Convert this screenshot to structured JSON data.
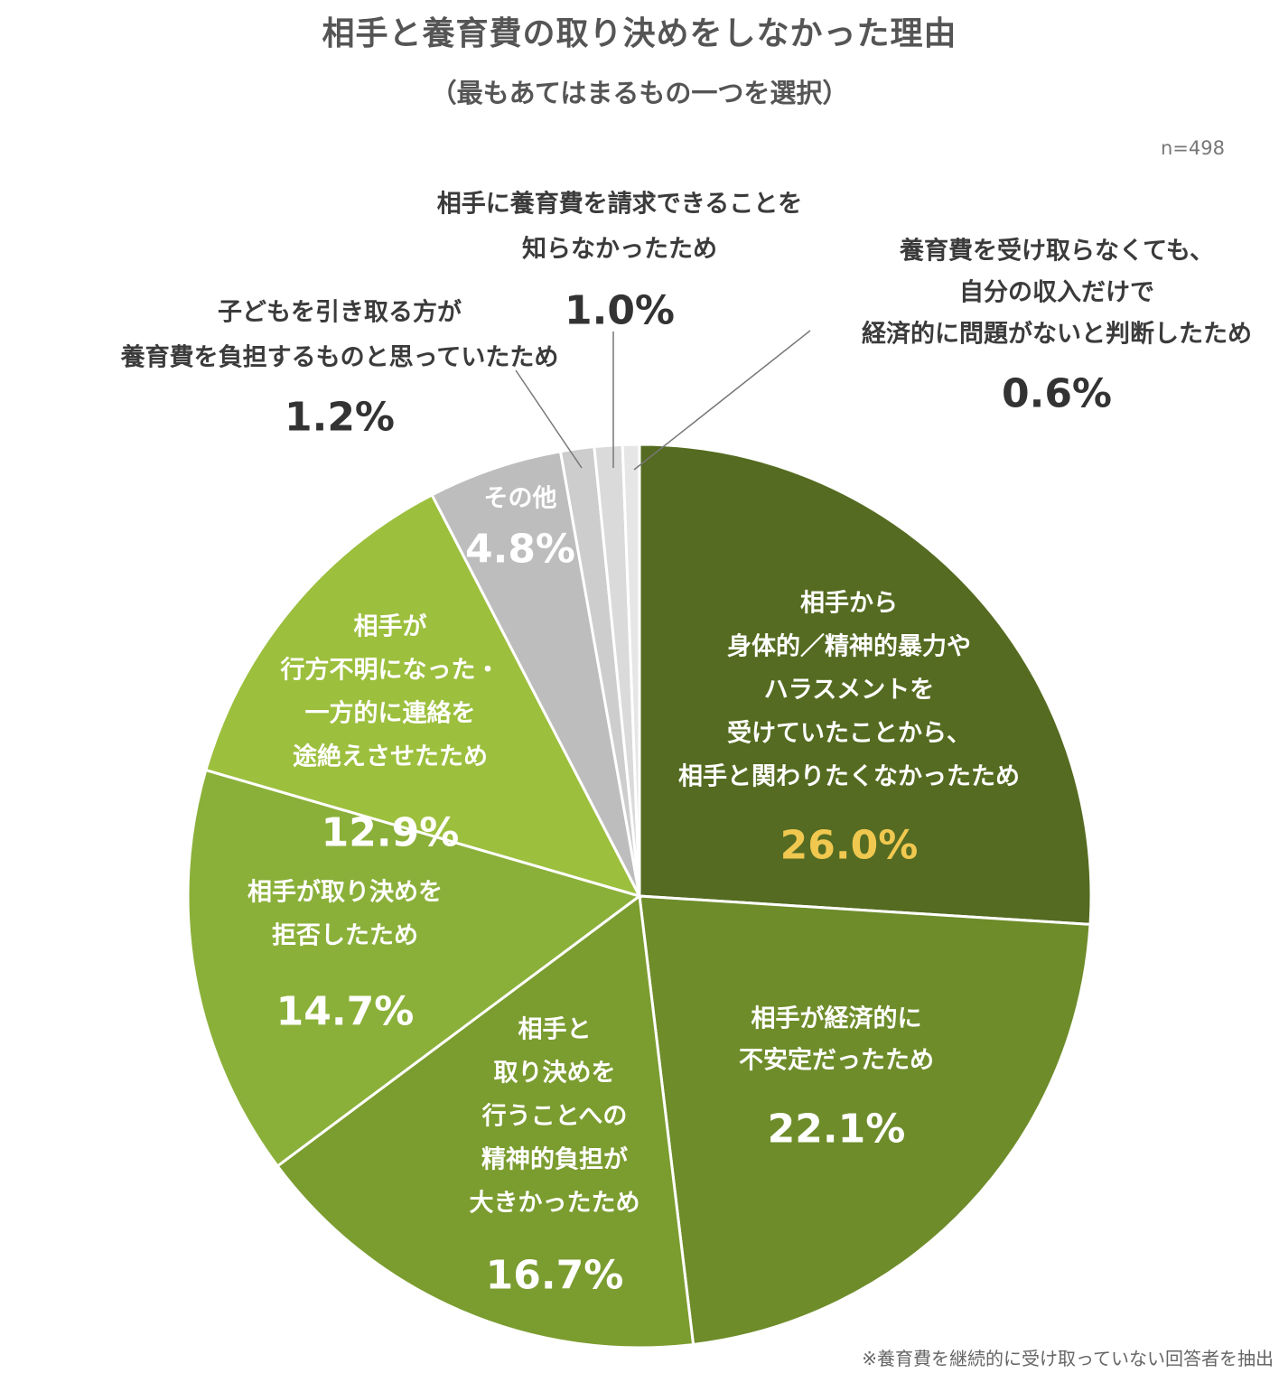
{
  "title": "相手と養育費の取り決めをしなかった理由",
  "subtitle": "（最もあてはまるもの一つを選択）",
  "n_label": "n=498",
  "footnote": "※養育費を継続的に受け取っていない回答者を抽出",
  "chart_data": {
    "type": "pie",
    "title": "相手と養育費の取り決めをしなかった理由",
    "subtitle": "（最もあてはまるもの一つを選択）",
    "n": "n=498",
    "start": "12 o'clock, clockwise",
    "slices": [
      {
        "lines": [
          "相手から",
          "身体的／精神的暴力や",
          "ハラスメントを",
          "受けていたことから、",
          "相手と関わりたくなかったため"
        ],
        "value": 26.0,
        "value_label": "26.0%",
        "color": "#556b21",
        "value_color": "#f0c850"
      },
      {
        "lines": [
          "相手が経済的に",
          "不安定だったため"
        ],
        "value": 22.1,
        "value_label": "22.1%",
        "color": "#6e8c2a",
        "value_color": "#ffffff"
      },
      {
        "lines": [
          "相手と",
          "取り決めを",
          "行うことへの",
          "精神的負担が",
          "大きかったため"
        ],
        "value": 16.7,
        "value_label": "16.7%",
        "color": "#7b9c2f",
        "value_color": "#ffffff"
      },
      {
        "lines": [
          "相手が取り決めを",
          "拒否したため"
        ],
        "value": 14.7,
        "value_label": "14.7%",
        "color": "#8bb03a",
        "value_color": "#ffffff"
      },
      {
        "lines": [
          "相手が",
          "行方不明になった・",
          "一方的に連絡を",
          "途絶えさせたため"
        ],
        "value": 12.9,
        "value_label": "12.9%",
        "color": "#9cbf3d",
        "value_color": "#ffffff"
      },
      {
        "lines": [
          "その他"
        ],
        "value": 4.8,
        "value_label": "4.8%",
        "color": "#bdbdbd",
        "value_color": "#ffffff"
      },
      {
        "lines": [
          "子どもを引き取る方が",
          "養育費を負担するものと思っていたため"
        ],
        "value": 1.2,
        "value_label": "1.2%",
        "color": "#cdcdcd",
        "value_color": "#333333"
      },
      {
        "lines": [
          "相手に養育費を請求できることを",
          "知らなかったため"
        ],
        "value": 1.0,
        "value_label": "1.0%",
        "color": "#dadada",
        "value_color": "#333333"
      },
      {
        "lines": [
          "養育費を受け取らなくても、",
          "自分の収入だけで",
          "経済的に問題がないと判断したため"
        ],
        "value": 0.6,
        "value_label": "0.6%",
        "color": "#e6e6e6",
        "value_color": "#333333"
      }
    ]
  }
}
